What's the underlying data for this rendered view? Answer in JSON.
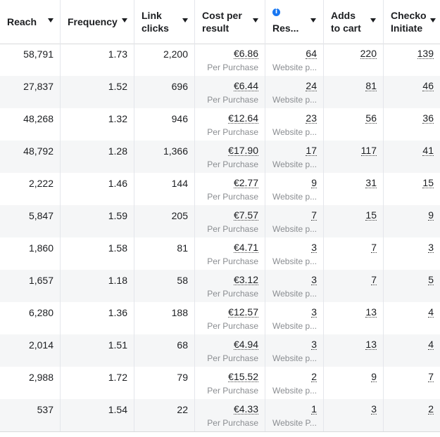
{
  "columns": [
    {
      "key": "reach",
      "label": "Reach"
    },
    {
      "key": "frequency",
      "label": "Frequency"
    },
    {
      "key": "link_clicks",
      "label": "Link\nclicks"
    },
    {
      "key": "cost_per_result",
      "label": "Cost per\nresult"
    },
    {
      "key": "results",
      "label": "Res...",
      "info_icon": "info-icon"
    },
    {
      "key": "adds_to_cart",
      "label": "Adds\nto cart"
    },
    {
      "key": "checkouts",
      "label": "Checko\nInitiate"
    }
  ],
  "rows": [
    {
      "reach": "58,791",
      "frequency": "1.73",
      "link_clicks": "2,200",
      "cost": "€6.86",
      "cost_sub": "Per Purchase",
      "results": "64",
      "results_sub": "Website p...",
      "atc": "220",
      "checkouts": "139"
    },
    {
      "reach": "27,837",
      "frequency": "1.52",
      "link_clicks": "696",
      "cost": "€6.44",
      "cost_sub": "Per Purchase",
      "results": "24",
      "results_sub": "Website p...",
      "atc": "81",
      "checkouts": "46"
    },
    {
      "reach": "48,268",
      "frequency": "1.32",
      "link_clicks": "946",
      "cost": "€12.64",
      "cost_sub": "Per Purchase",
      "results": "23",
      "results_sub": "Website p...",
      "atc": "56",
      "checkouts": "36"
    },
    {
      "reach": "48,792",
      "frequency": "1.28",
      "link_clicks": "1,366",
      "cost": "€17.90",
      "cost_sub": "Per Purchase",
      "results": "17",
      "results_sub": "Website p...",
      "atc": "117",
      "checkouts": "41"
    },
    {
      "reach": "2,222",
      "frequency": "1.46",
      "link_clicks": "144",
      "cost": "€2.77",
      "cost_sub": "Per Purchase",
      "results": "9",
      "results_sub": "Website p...",
      "atc": "31",
      "checkouts": "15"
    },
    {
      "reach": "5,847",
      "frequency": "1.59",
      "link_clicks": "205",
      "cost": "€7.57",
      "cost_sub": "Per Purchase",
      "results": "7",
      "results_sub": "Website p...",
      "atc": "15",
      "checkouts": "9"
    },
    {
      "reach": "1,860",
      "frequency": "1.58",
      "link_clicks": "81",
      "cost": "€4.71",
      "cost_sub": "Per Purchase",
      "results": "3",
      "results_sub": "Website p...",
      "atc": "7",
      "checkouts": "3"
    },
    {
      "reach": "1,657",
      "frequency": "1.18",
      "link_clicks": "58",
      "cost": "€3.12",
      "cost_sub": "Per Purchase",
      "results": "3",
      "results_sub": "Website p...",
      "atc": "7",
      "checkouts": "5"
    },
    {
      "reach": "6,280",
      "frequency": "1.36",
      "link_clicks": "188",
      "cost": "€12.57",
      "cost_sub": "Per Purchase",
      "results": "3",
      "results_sub": "Website p...",
      "atc": "13",
      "checkouts": "4"
    },
    {
      "reach": "2,014",
      "frequency": "1.51",
      "link_clicks": "68",
      "cost": "€4.94",
      "cost_sub": "Per Purchase",
      "results": "3",
      "results_sub": "Website p...",
      "atc": "13",
      "checkouts": "4"
    },
    {
      "reach": "2,988",
      "frequency": "1.72",
      "link_clicks": "79",
      "cost": "€15.52",
      "cost_sub": "Per Purchase",
      "results": "2",
      "results_sub": "Website p...",
      "atc": "9",
      "checkouts": "7"
    },
    {
      "reach": "537",
      "frequency": "1.54",
      "link_clicks": "22",
      "cost": "€4.33",
      "cost_sub": "Per Purchase",
      "results": "1",
      "results_sub": "Website P...",
      "atc": "3",
      "checkouts": "2"
    }
  ],
  "colors": {
    "accent": "#1877f2",
    "alt_row": "#f5f6f7",
    "muted": "#8a8d91"
  }
}
